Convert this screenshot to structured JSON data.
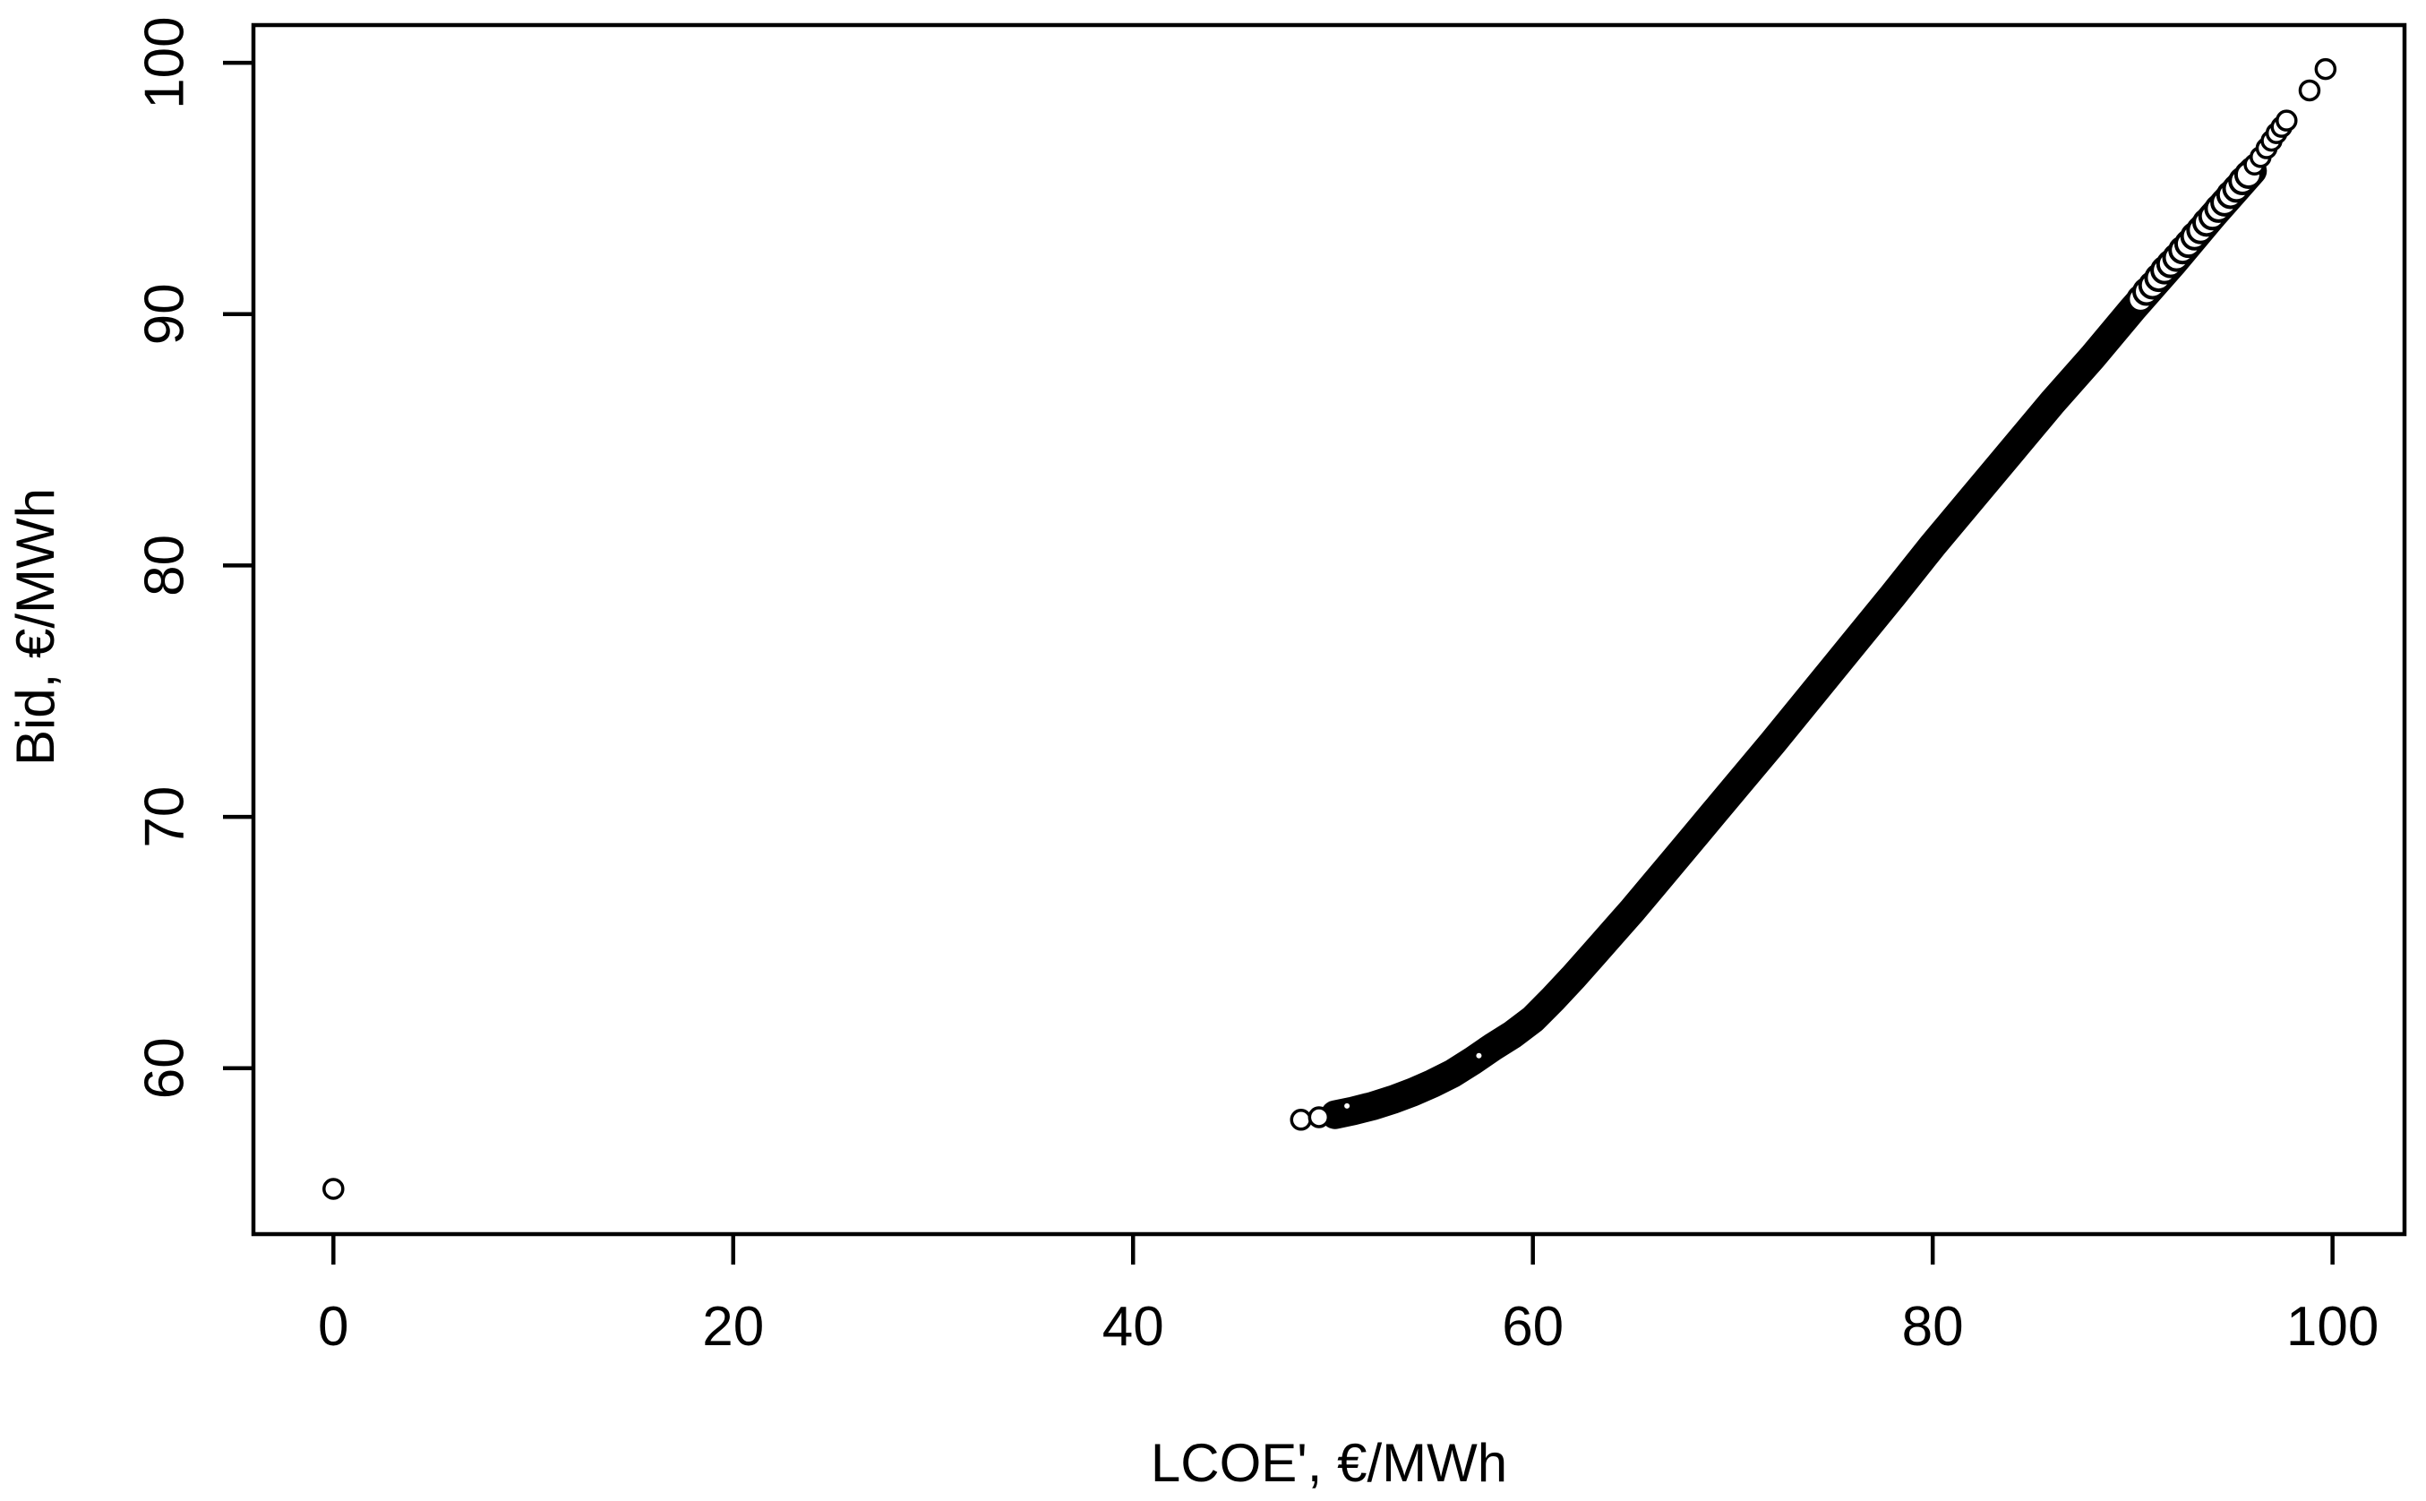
{
  "chart_data": {
    "type": "scatter",
    "title": "",
    "xlabel": "LCOE', €/MWh",
    "ylabel": "Bid, €/MWh",
    "x_ticks": [
      0,
      20,
      40,
      60,
      80,
      100
    ],
    "y_ticks": [
      60,
      70,
      80,
      90,
      100
    ],
    "xlim": [
      -4.0,
      103.6
    ],
    "ylim": [
      53.4,
      101.5
    ],
    "grid": false,
    "legend": "none",
    "marker": "open-circle",
    "marker_color": "#000000",
    "background": "#ffffff",
    "outlier_point": [
      0,
      55.2
    ],
    "left_edge_points": [
      [
        48.4,
        57.95
      ],
      [
        49.3,
        58.05
      ]
    ],
    "band_curve": [
      [
        50.1,
        58.15
      ],
      [
        51,
        58.3
      ],
      [
        52,
        58.5
      ],
      [
        53,
        58.75
      ],
      [
        54,
        59.05
      ],
      [
        55,
        59.4
      ],
      [
        56,
        59.8
      ],
      [
        57,
        60.3
      ],
      [
        58,
        60.85
      ],
      [
        59,
        61.35
      ],
      [
        60,
        61.95
      ],
      [
        61,
        62.75
      ],
      [
        62,
        63.6
      ],
      [
        63,
        64.5
      ],
      [
        64,
        65.4
      ],
      [
        65,
        66.3
      ],
      [
        66,
        67.25
      ],
      [
        67,
        68.2
      ],
      [
        68,
        69.15
      ],
      [
        69,
        70.1
      ],
      [
        70,
        71.05
      ],
      [
        72,
        72.95
      ],
      [
        74,
        74.9
      ],
      [
        76,
        76.85
      ],
      [
        78,
        78.8
      ],
      [
        80,
        80.8
      ],
      [
        82,
        82.7
      ],
      [
        84,
        84.6
      ],
      [
        86,
        86.5
      ],
      [
        88,
        88.3
      ],
      [
        90,
        90.2
      ],
      [
        92,
        92.0
      ],
      [
        94,
        93.9
      ],
      [
        95,
        94.8
      ],
      [
        96,
        95.7
      ]
    ],
    "speckle_points": [
      [
        90.4,
        90.6
      ],
      [
        90.7,
        90.9
      ],
      [
        91.0,
        91.15
      ],
      [
        91.3,
        91.45
      ],
      [
        91.6,
        91.75
      ],
      [
        91.9,
        92.0
      ],
      [
        92.2,
        92.25
      ],
      [
        92.5,
        92.55
      ],
      [
        92.8,
        92.8
      ],
      [
        93.1,
        93.1
      ],
      [
        93.4,
        93.35
      ],
      [
        93.7,
        93.65
      ],
      [
        94.0,
        93.9
      ],
      [
        94.3,
        94.2
      ],
      [
        94.6,
        94.45
      ],
      [
        94.9,
        94.75
      ],
      [
        95.2,
        95.0
      ],
      [
        95.5,
        95.3
      ],
      [
        95.8,
        95.55
      ]
    ],
    "tail_points": [
      [
        96.1,
        95.95
      ],
      [
        96.4,
        96.25
      ],
      [
        96.7,
        96.6
      ],
      [
        96.95,
        96.9
      ],
      [
        97.2,
        97.2
      ],
      [
        97.45,
        97.45
      ],
      [
        97.7,
        97.7
      ],
      [
        98.85,
        98.9
      ],
      [
        99.65,
        99.75
      ]
    ],
    "pinholes": [
      [
        50.7,
        58.5
      ],
      [
        57.3,
        60.5
      ]
    ]
  }
}
